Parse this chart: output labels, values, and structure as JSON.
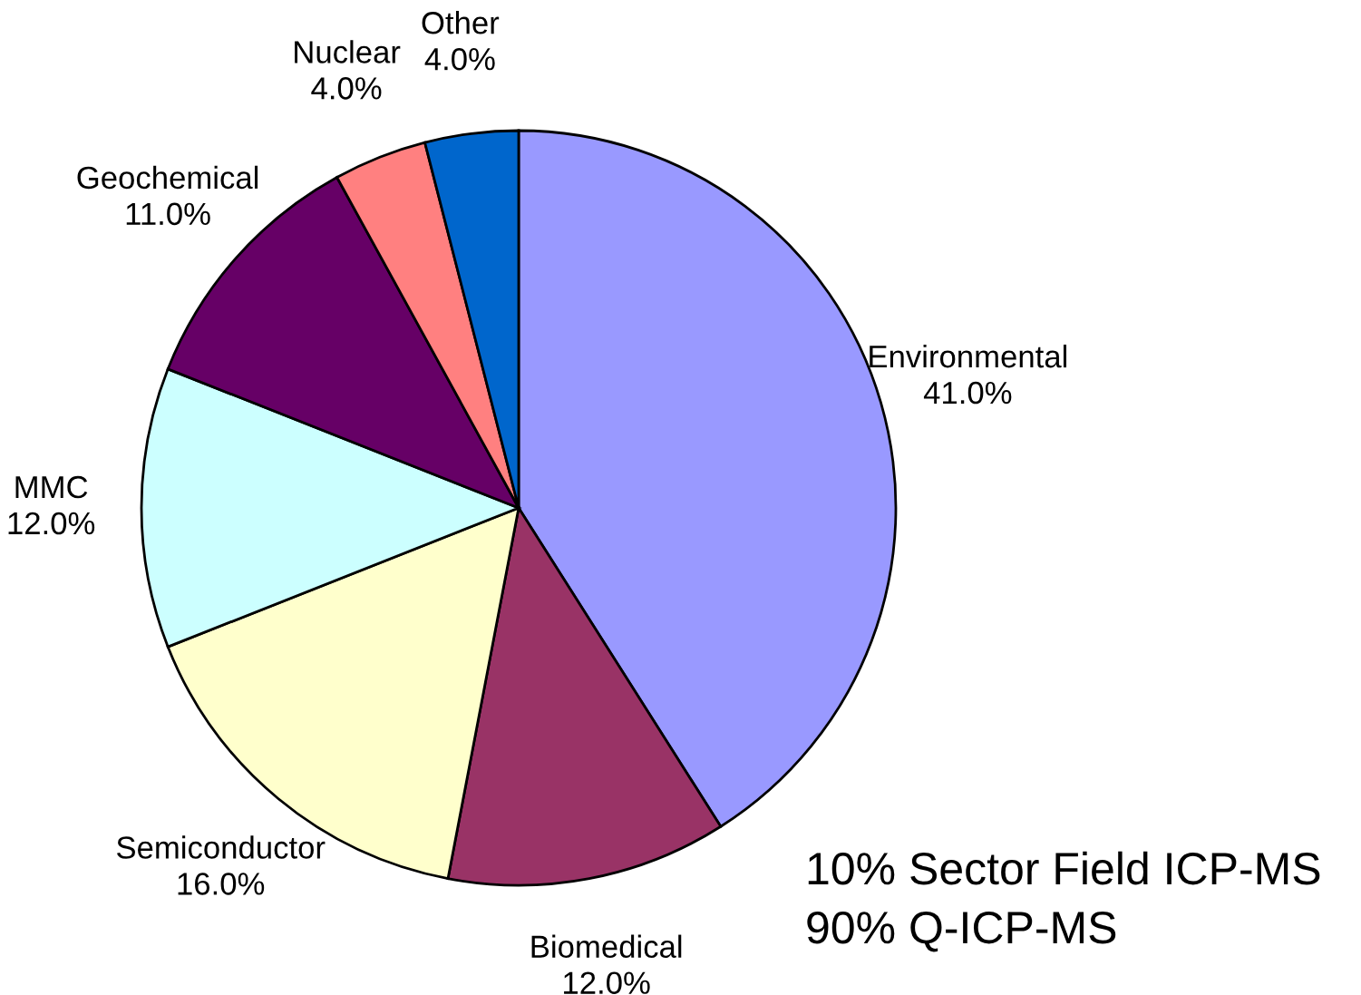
{
  "chart_data": {
    "type": "pie",
    "categories": [
      "Environmental",
      "Biomedical",
      "Semiconductor",
      "MMC",
      "Geochemical",
      "Nuclear",
      "Other"
    ],
    "values": [
      41,
      12,
      16,
      12,
      11,
      4,
      4
    ],
    "value_labels": [
      "41.0%",
      "12.0%",
      "16.0%",
      "12.0%",
      "11.0%",
      "4.0%",
      "4.0%"
    ],
    "colors": [
      "#9999ff",
      "#993366",
      "#ffffcc",
      "#ccffff",
      "#660066",
      "#ff8080",
      "#0066cc"
    ],
    "annotations": [
      "10% Sector Field ICP-MS",
      "90% Q-ICP-MS"
    ]
  }
}
